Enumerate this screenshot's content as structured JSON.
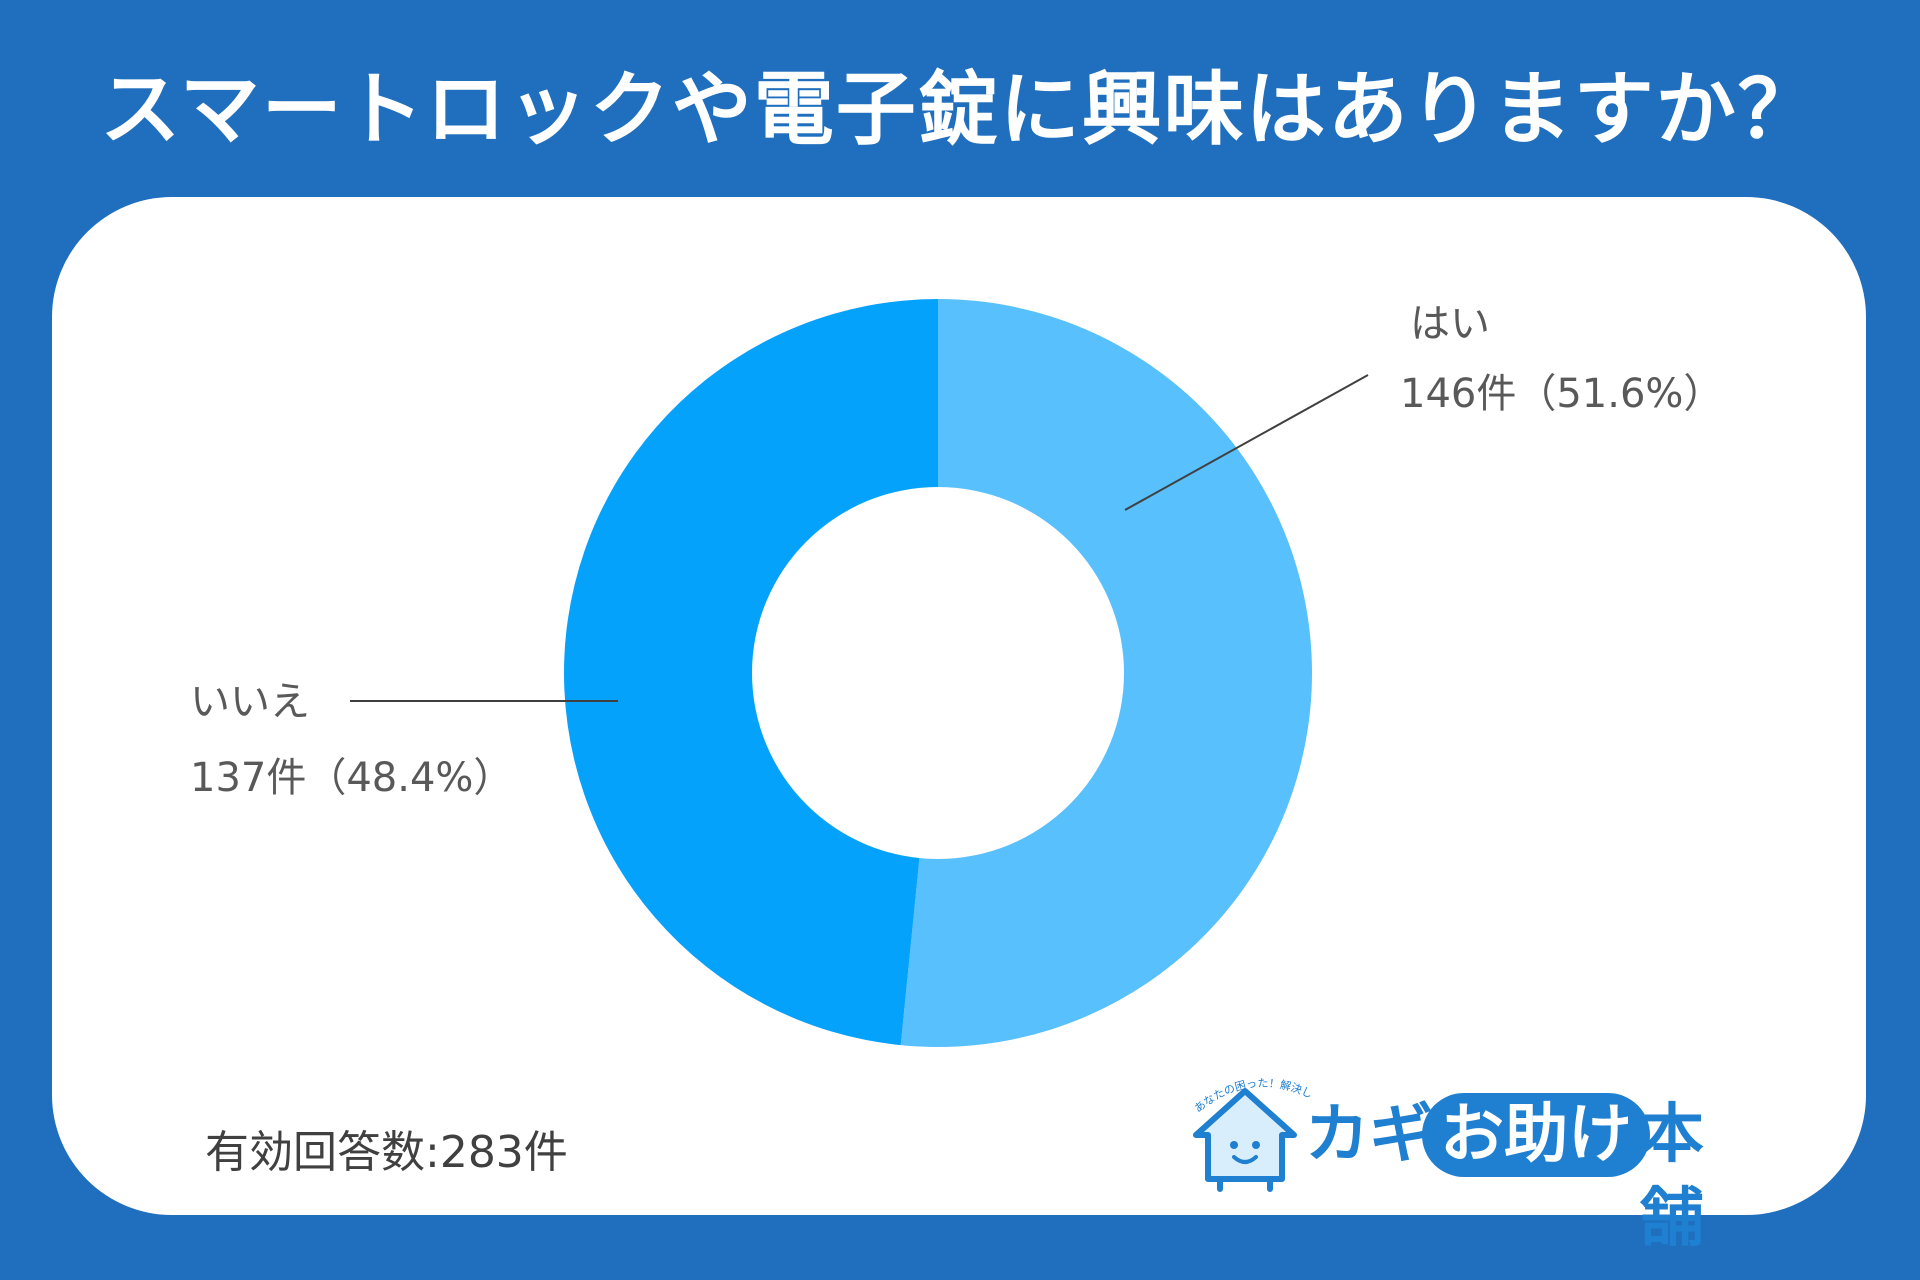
{
  "title": "スマートロックや電子錠に興味はありますか？",
  "chart_data": {
    "type": "pie",
    "donut": true,
    "slices": [
      {
        "label": "はい",
        "count_text": "146件（51.6%）",
        "value": 146,
        "percent": 51.6,
        "color": "#57c0fd"
      },
      {
        "label": "いいえ",
        "count_text": "137件（48.4%）",
        "value": 137,
        "percent": 48.4,
        "color": "#05a2fc"
      }
    ],
    "total_label": "有効回答数:283件",
    "legend": "none"
  },
  "logo": {
    "kagi": "カギ",
    "otasuke": "お助け",
    "honpo": "本舗",
    "tagline": "あなたの困った！解決します"
  },
  "colors": {
    "background": "#1f6fbe",
    "card": "#ffffff",
    "brand": "#1f7fd0",
    "leader_line": "#404040"
  }
}
